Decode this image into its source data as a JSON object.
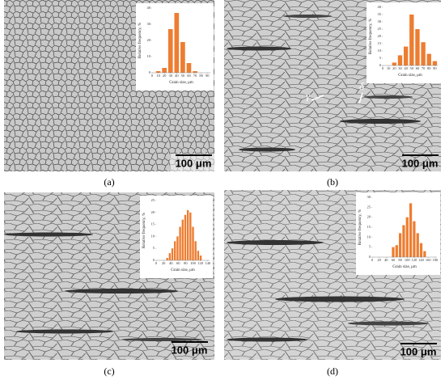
{
  "chart_data": [
    {
      "type": "bar",
      "y_label": "Relative frequency, %",
      "x_label": "Grain size, μm",
      "color": "#ed7d31",
      "x": [
        10,
        20,
        30,
        40,
        50,
        60,
        70
      ],
      "values": [
        1,
        3,
        27,
        37,
        19,
        6,
        1
      ],
      "xlim": [
        0,
        95
      ],
      "ylim": [
        0,
        40
      ],
      "xticks": [
        0,
        10,
        20,
        30,
        40,
        50,
        60,
        70,
        80,
        90
      ],
      "yticks": [
        0,
        10,
        20,
        30,
        40
      ]
    },
    {
      "type": "bar",
      "y_label": "Relative frequency, %",
      "x_label": "Grain size, μm",
      "color": "#ed7d31",
      "x": [
        20,
        30,
        40,
        50,
        60,
        70,
        80,
        90
      ],
      "values": [
        2,
        7,
        13,
        35,
        25,
        16,
        8,
        3
      ],
      "xlim": [
        0,
        95
      ],
      "ylim": [
        0,
        40
      ],
      "xticks": [
        0,
        10,
        20,
        30,
        40,
        50,
        60,
        70,
        80,
        90
      ],
      "yticks": [
        0,
        5,
        10,
        15,
        20,
        25,
        30,
        35,
        40
      ]
    },
    {
      "type": "bar",
      "y_label": "Relative frequency, %",
      "x_label": "Grain size, μm",
      "color": "#ed7d31",
      "x": [
        30,
        37,
        44,
        51,
        58,
        65,
        72,
        79,
        86,
        93,
        100,
        107,
        114,
        121
      ],
      "values": [
        1,
        3,
        5,
        8,
        10,
        14,
        17,
        19,
        21,
        20,
        14,
        8,
        4,
        2
      ],
      "xlim": [
        0,
        145
      ],
      "ylim": [
        0,
        25
      ],
      "xticks": [
        0,
        20,
        40,
        60,
        80,
        100,
        120,
        140
      ],
      "yticks": [
        0,
        5,
        10,
        15,
        20,
        25
      ]
    },
    {
      "type": "bar",
      "y_label": "Relative frequency, %",
      "x_label": "Grain size, μm",
      "color": "#ed7d31",
      "x": [
        60,
        70,
        80,
        90,
        100,
        110,
        120,
        130,
        140,
        150
      ],
      "values": [
        5,
        6,
        12,
        16,
        20,
        27,
        18,
        12,
        7,
        3
      ],
      "xlim": [
        0,
        185
      ],
      "ylim": [
        0,
        30
      ],
      "xticks": [
        0,
        20,
        40,
        60,
        80,
        100,
        120,
        140,
        160,
        180
      ],
      "yticks": [
        0,
        5,
        10,
        15,
        20,
        25,
        30
      ]
    }
  ],
  "panel_labels": [
    "(a)",
    "(b)",
    "(c)",
    "(d)"
  ],
  "scale_bars": [
    "100 μm",
    "100 μm",
    "100 μm",
    "100 μm"
  ],
  "annotations": [
    "γ",
    "δ"
  ]
}
